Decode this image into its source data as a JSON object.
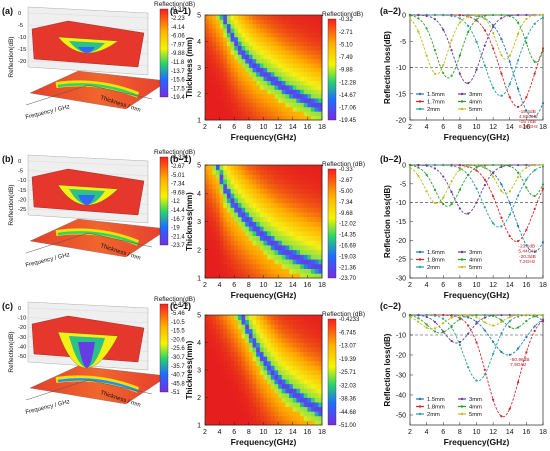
{
  "chart_data": [
    {
      "panel": "(a)",
      "type": "surface3d",
      "colorbar_title": "Reflection(dB)",
      "colorbar_ticks": [
        "-0.31",
        "-2.23",
        "-4.14",
        "-6.06",
        "-7.97",
        "-9.88",
        "-11.8",
        "-13.7",
        "-15.6",
        "-17.5",
        "-19.4"
      ],
      "zlabel": "Reflection(dB)",
      "xlabel": "Frequency / GHz",
      "ylabel": "Thickness / mm",
      "z_ticks": [
        "0",
        "-5",
        "-10",
        "-15",
        "-20"
      ],
      "ylim": [
        -20,
        0
      ]
    },
    {
      "panel": "(a-1)",
      "type": "heatmap",
      "colorbar_title": "Reflection(dB)",
      "colorbar_ticks": [
        "-0.32",
        "-2.71",
        "-5.10",
        "-7.49",
        "-9.88",
        "-12.28",
        "-14.67",
        "-17.06",
        "-19.45"
      ],
      "xlabel": "Frequency(GHz)",
      "ylabel": "Thickness (mm)",
      "x_ticks": [
        "2",
        "4",
        "6",
        "8",
        "10",
        "12",
        "14",
        "16",
        "18"
      ],
      "y_ticks": [
        "1",
        "2",
        "3",
        "4",
        "5"
      ],
      "xlim": [
        2,
        18
      ],
      "ylim": [
        1,
        5
      ],
      "min_band": [
        [
          4.5,
          5
        ],
        [
          5.5,
          4.3
        ],
        [
          7,
          3.6
        ],
        [
          9,
          3
        ],
        [
          11,
          2.6
        ],
        [
          13,
          2.2
        ],
        [
          15,
          1.9
        ],
        [
          17,
          1.6
        ],
        [
          18,
          1.5
        ]
      ],
      "min_value": -19.45
    },
    {
      "panel": "(a-2)",
      "type": "line",
      "xlabel": "Frequency(GHz)",
      "ylabel": "Reflection loss(dB)",
      "x_ticks": [
        "2",
        "4",
        "6",
        "8",
        "10",
        "12",
        "14",
        "16",
        "18"
      ],
      "y_ticks": [
        "0",
        "-5",
        "-10",
        "-15",
        "-20"
      ],
      "xlim": [
        2,
        18
      ],
      "ylim": [
        -20,
        0
      ],
      "series": [
        {
          "name": "1.5mm",
          "color": "#1f77b4",
          "min_freq": 16.8,
          "min_value": -19.4
        },
        {
          "name": "1.7mm",
          "color": "#d62728",
          "min_freq": 15.0,
          "min_value": -17.5
        },
        {
          "name": "2mm",
          "color": "#2f9e9e",
          "min_freq": 12.9,
          "min_value": -15.4
        },
        {
          "name": "3mm",
          "color": "#6a3d9a",
          "min_freq": 8.9,
          "min_value": -13.0
        },
        {
          "name": "4mm",
          "color": "#2ca02c",
          "min_freq": 6.6,
          "min_value": -12.0
        },
        {
          "name": "5mm",
          "color": "#bcbd22",
          "min_freq": 5.2,
          "min_value": -11.3
        }
      ],
      "annotations": [
        "-15.7dB\n6.36GHz",
        "-19.4dB\n4.85GHz"
      ]
    },
    {
      "panel": "(b)",
      "type": "surface3d",
      "colorbar_title": "Reflection(dB)",
      "colorbar_ticks": [
        "-0.334",
        "-2.67",
        "-5.01",
        "-7.34",
        "-9.68",
        "-12",
        "-14.4",
        "-16.7",
        "-19",
        "-21.4",
        "-23.7"
      ],
      "zlabel": "Reflection(dB)",
      "xlabel": "Frequency / GHz",
      "ylabel": "Thickness / mm",
      "z_ticks": [
        "0",
        "-5",
        "-10",
        "-15",
        "-20",
        "-25"
      ],
      "ylim": [
        -25,
        0
      ]
    },
    {
      "panel": "(b-1)",
      "type": "heatmap",
      "colorbar_title": "Reflection (dB)",
      "colorbar_ticks": [
        "-0.33",
        "-2.67",
        "-5.00",
        "-7.34",
        "-9.68",
        "-12.02",
        "-14.35",
        "-16.69",
        "-19.03",
        "-21.36",
        "-23.70"
      ],
      "xlabel": "Frequency(GHz)",
      "ylabel": "Thickness(mm)",
      "x_ticks": [
        "2",
        "4",
        "6",
        "8",
        "10",
        "12",
        "14",
        "16",
        "18"
      ],
      "y_ticks": [
        "1",
        "2",
        "3",
        "4",
        "5"
      ],
      "xlim": [
        2,
        18
      ],
      "ylim": [
        1,
        5
      ],
      "min_band": [
        [
          3.8,
          5
        ],
        [
          4.5,
          4.3
        ],
        [
          6,
          3.6
        ],
        [
          8,
          3
        ],
        [
          10,
          2.5
        ],
        [
          12,
          2.1
        ],
        [
          14,
          1.8
        ],
        [
          16,
          1.55
        ],
        [
          18,
          1.35
        ]
      ],
      "min_value": -23.7
    },
    {
      "panel": "(b-2)",
      "type": "line",
      "xlabel": "Frequency(GHz)",
      "ylabel": "Reflection loss(dB)",
      "x_ticks": [
        "2",
        "4",
        "6",
        "8",
        "10",
        "12",
        "14",
        "16",
        "18"
      ],
      "y_ticks": [
        "0",
        "-5",
        "-10",
        "-15",
        "-20",
        "-25",
        "-30"
      ],
      "xlim": [
        2,
        18
      ],
      "ylim": [
        -30,
        0
      ],
      "series": [
        {
          "name": "1.6mm",
          "color": "#1f77b4",
          "min_freq": 16.9,
          "min_value": -23.1
        },
        {
          "name": "1.8mm",
          "color": "#d62728",
          "min_freq": 14.8,
          "min_value": -20.3
        },
        {
          "name": "2mm",
          "color": "#2f9e9e",
          "min_freq": 12.7,
          "min_value": -16.5
        },
        {
          "name": "3mm",
          "color": "#6a3d9a",
          "min_freq": 8.8,
          "min_value": -13.0
        },
        {
          "name": "4mm",
          "color": "#2ca02c",
          "min_freq": 6.5,
          "min_value": -11.0
        },
        {
          "name": "5mm",
          "color": "#bcbd22",
          "min_freq": 5.2,
          "min_value": -10.2
        }
      ],
      "annotations": [
        "-20.3dB\n7.2GHz",
        "-23.1dB\n5.44GHz"
      ]
    },
    {
      "panel": "(c)",
      "type": "surface3d",
      "colorbar_title": "Reflection(dB)",
      "colorbar_ticks": [
        "-0.423",
        "-5.46",
        "-10.5",
        "-15.5",
        "-20.6",
        "-25.6",
        "-30.7",
        "-35.7",
        "-40.7",
        "-45.8",
        "-51"
      ],
      "zlabel": "Reflection(dB)",
      "xlabel": "Frequency / GHz",
      "ylabel": "Thickness / mm",
      "z_ticks": [
        "0",
        "-10",
        "-20",
        "-30",
        "-40",
        "-50"
      ],
      "ylim": [
        -50,
        0
      ]
    },
    {
      "panel": "(c-1)",
      "type": "heatmap",
      "colorbar_title": "Reflection (dB)",
      "colorbar_ticks": [
        "-0.4233",
        "-6.745",
        "-13.07",
        "-19.39",
        "-25.71",
        "-32.03",
        "-38.36",
        "-44.68",
        "-51.00"
      ],
      "xlabel": "Frequency(GHz)",
      "ylabel": "Thickness(mm)",
      "x_ticks": [
        "2",
        "4",
        "6",
        "8",
        "10",
        "12",
        "14",
        "16",
        "18"
      ],
      "y_ticks": [
        "1",
        "2",
        "3",
        "4",
        "5"
      ],
      "xlim": [
        2,
        18
      ],
      "ylim": [
        1,
        5
      ],
      "min_band": [
        [
          7,
          5
        ],
        [
          8,
          4.4
        ],
        [
          9.5,
          3.6
        ],
        [
          11,
          3
        ],
        [
          12.5,
          2.5
        ],
        [
          14,
          2.2
        ],
        [
          16,
          1.8
        ],
        [
          18,
          1.5
        ]
      ],
      "min_value": -51.0
    },
    {
      "panel": "(c-2)",
      "type": "line",
      "xlabel": "Frequency(GHz)",
      "ylabel": "Reflection loss(dB)",
      "x_ticks": [
        "2",
        "4",
        "6",
        "8",
        "10",
        "12",
        "14",
        "16",
        "18"
      ],
      "y_ticks": [
        "0",
        "-10",
        "-20",
        "-30",
        "-40",
        "-50"
      ],
      "xlim": [
        2,
        18
      ],
      "ylim": [
        -55,
        0
      ],
      "series": [
        {
          "name": "1.5mm",
          "color": "#1f77b4",
          "min_freq": 13.8,
          "min_value": -20.0
        },
        {
          "name": "1.8mm",
          "color": "#d62728",
          "min_freq": 13.2,
          "min_value": -50.9
        },
        {
          "name": "2mm",
          "color": "#2f9e9e",
          "min_freq": 10.2,
          "min_value": -33.0
        },
        {
          "name": "3mm",
          "color": "#6a3d9a",
          "min_freq": 7.6,
          "min_value": -14.0
        },
        {
          "name": "4mm",
          "color": "#2ca02c",
          "min_freq": 5.6,
          "min_value": -9.0
        },
        {
          "name": "5mm",
          "color": "#bcbd22",
          "min_freq": 4.6,
          "min_value": -7.0
        }
      ],
      "annotations": [
        "-50.96dB\n7.9GHz"
      ]
    }
  ]
}
